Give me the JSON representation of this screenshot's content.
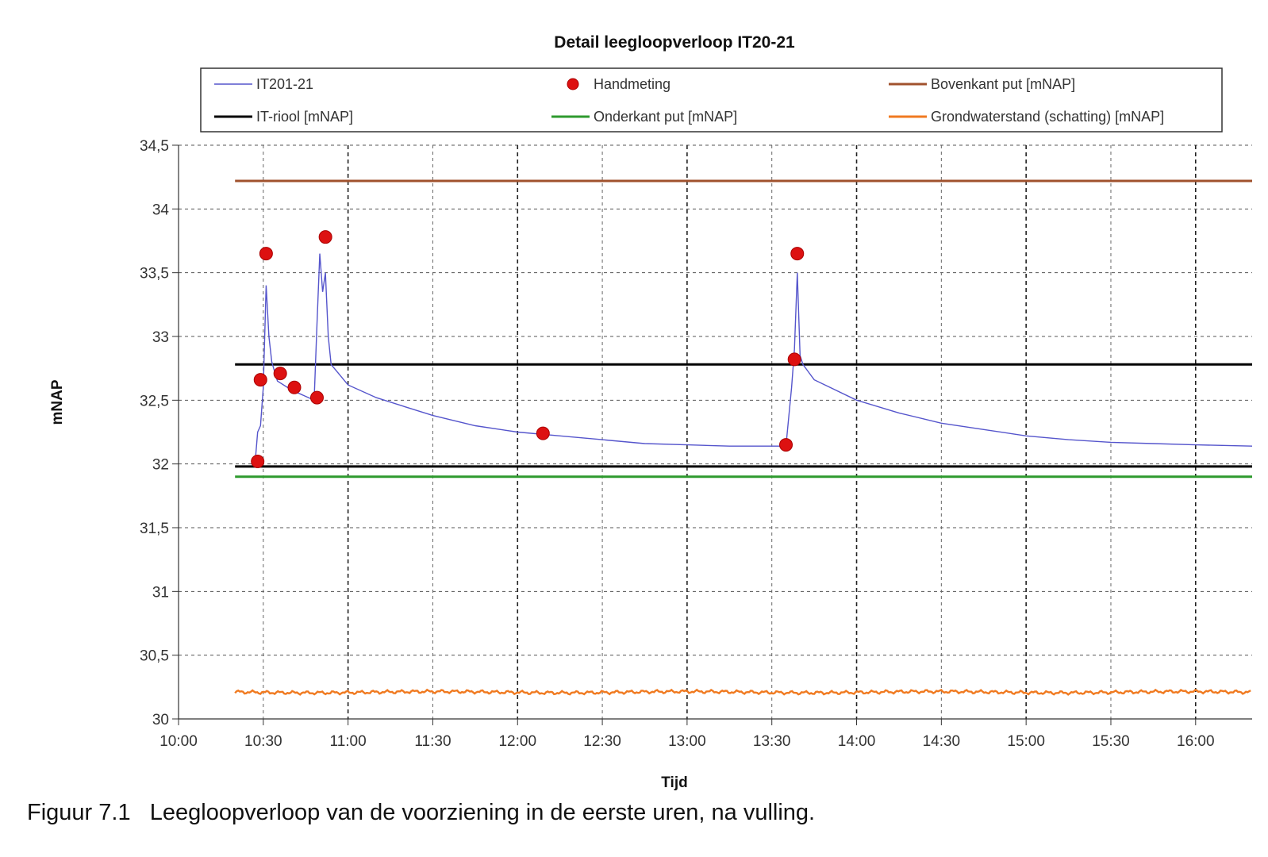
{
  "chart_data": {
    "type": "line",
    "title": "Detail leegloopverloop IT20-21",
    "xlabel": "Tijd",
    "ylabel": "mNAP",
    "xlim": [
      "10:00",
      "16:20"
    ],
    "ylim": [
      30,
      34.5
    ],
    "x_ticks": [
      "10:00",
      "10:30",
      "11:00",
      "11:30",
      "12:00",
      "12:30",
      "13:00",
      "13:30",
      "14:00",
      "14:30",
      "15:00",
      "15:30",
      "16:00"
    ],
    "y_ticks": [
      "30",
      "30,5",
      "31",
      "31,5",
      "32",
      "32,5",
      "33",
      "33,5",
      "34",
      "34,5"
    ],
    "grid": true,
    "legend_position": "top",
    "series": [
      {
        "name": "IT201-21",
        "style": "line",
        "color": "#5555cc",
        "points": [
          [
            "10:27",
            31.98
          ],
          [
            "10:28",
            32.25
          ],
          [
            "10:29",
            32.3
          ],
          [
            "10:30",
            32.6
          ],
          [
            "10:31",
            33.4
          ],
          [
            "10:32",
            33.0
          ],
          [
            "10:33",
            32.8
          ],
          [
            "10:35",
            32.65
          ],
          [
            "10:40",
            32.58
          ],
          [
            "10:45",
            32.53
          ],
          [
            "10:48",
            32.5
          ],
          [
            "10:49",
            33.1
          ],
          [
            "10:50",
            33.65
          ],
          [
            "10:51",
            33.35
          ],
          [
            "10:52",
            33.5
          ],
          [
            "10:53",
            33.0
          ],
          [
            "10:54",
            32.78
          ],
          [
            "11:00",
            32.62
          ],
          [
            "11:10",
            32.52
          ],
          [
            "11:20",
            32.45
          ],
          [
            "11:30",
            32.38
          ],
          [
            "11:45",
            32.3
          ],
          [
            "12:00",
            32.25
          ],
          [
            "12:15",
            32.22
          ],
          [
            "12:30",
            32.19
          ],
          [
            "12:45",
            32.16
          ],
          [
            "13:00",
            32.15
          ],
          [
            "13:15",
            32.14
          ],
          [
            "13:30",
            32.14
          ],
          [
            "13:35",
            32.14
          ],
          [
            "13:37",
            32.6
          ],
          [
            "13:38",
            32.9
          ],
          [
            "13:39",
            33.5
          ],
          [
            "13:40",
            32.85
          ],
          [
            "13:41",
            32.78
          ],
          [
            "13:45",
            32.66
          ],
          [
            "14:00",
            32.5
          ],
          [
            "14:15",
            32.4
          ],
          [
            "14:30",
            32.32
          ],
          [
            "14:45",
            32.27
          ],
          [
            "15:00",
            32.22
          ],
          [
            "15:15",
            32.19
          ],
          [
            "15:30",
            32.17
          ],
          [
            "15:45",
            32.16
          ],
          [
            "16:00",
            32.15
          ],
          [
            "16:20",
            32.14
          ]
        ]
      },
      {
        "name": "Handmeting",
        "style": "marker",
        "color": "#dd1111",
        "points": [
          [
            "10:28",
            32.02
          ],
          [
            "10:29",
            32.66
          ],
          [
            "10:31",
            33.65
          ],
          [
            "10:36",
            32.71
          ],
          [
            "10:41",
            32.6
          ],
          [
            "10:49",
            32.52
          ],
          [
            "10:52",
            33.78
          ],
          [
            "12:09",
            32.24
          ],
          [
            "13:35",
            32.15
          ],
          [
            "13:38",
            32.82
          ],
          [
            "13:39",
            33.65
          ]
        ]
      },
      {
        "name": "Bovenkant put [mNAP]",
        "style": "line",
        "color": "#a0522d",
        "points": [
          [
            "10:20",
            34.22
          ],
          [
            "16:20",
            34.22
          ]
        ]
      },
      {
        "name": "IT-riool [mNAP]",
        "style": "line",
        "color": "#000000",
        "points": [
          [
            "10:20",
            32.78
          ],
          [
            "16:20",
            32.78
          ]
        ]
      },
      {
        "name": "IT-riool [mNAP]",
        "style": "line",
        "color": "#000000",
        "points": [
          [
            "10:20",
            31.98
          ],
          [
            "16:20",
            31.98
          ]
        ]
      },
      {
        "name": "Onderkant put [mNAP]",
        "style": "line",
        "color": "#2e9a2e",
        "points": [
          [
            "10:20",
            31.9
          ],
          [
            "16:20",
            31.9
          ]
        ]
      },
      {
        "name": "Grondwaterstand  (schatting)  [mNAP]",
        "style": "line",
        "color": "#f07a20",
        "points": [
          [
            "10:20",
            30.21
          ],
          [
            "16:20",
            30.21
          ]
        ]
      }
    ]
  },
  "legend": [
    {
      "label": "IT201-21",
      "color": "#5555cc",
      "kind": "line"
    },
    {
      "label": "Handmeting",
      "color": "#dd1111",
      "kind": "marker"
    },
    {
      "label": "Bovenkant put [mNAP]",
      "color": "#a0522d",
      "kind": "line"
    },
    {
      "label": "IT-riool [mNAP]",
      "color": "#000000",
      "kind": "line"
    },
    {
      "label": "Onderkant put [mNAP]",
      "color": "#2e9a2e",
      "kind": "line"
    },
    {
      "label": "Grondwaterstand  (schatting)  [mNAP]",
      "color": "#f07a20",
      "kind": "line"
    }
  ],
  "caption": "Figuur 7.1   Leegloopverloop van de voorziening in de eerste uren, na vulling."
}
